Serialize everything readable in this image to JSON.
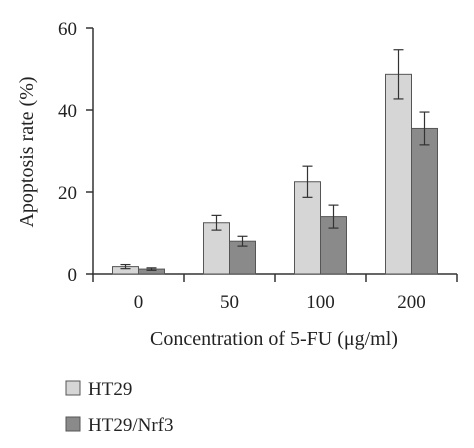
{
  "chart_data": {
    "type": "bar",
    "title": "",
    "xlabel": "Concentration of 5-FU (μg/ml)",
    "ylabel": "Apoptosis rate (%)",
    "categories": [
      "0",
      "50",
      "100",
      "200"
    ],
    "ylim": [
      0,
      60
    ],
    "yticks": [
      0,
      20,
      40,
      60
    ],
    "grid": false,
    "legend_position": "bottom-left",
    "series": [
      {
        "name": "HT29",
        "values": [
          1.8,
          12.5,
          22.5,
          48.7
        ],
        "errors": [
          0.5,
          1.8,
          3.8,
          6.0
        ],
        "color": "#d6d6d6"
      },
      {
        "name": "HT29/Nrf3",
        "values": [
          1.2,
          8.0,
          14.0,
          35.5
        ],
        "errors": [
          0.3,
          1.2,
          2.8,
          4.0
        ],
        "color": "#8a8a8a"
      }
    ]
  }
}
